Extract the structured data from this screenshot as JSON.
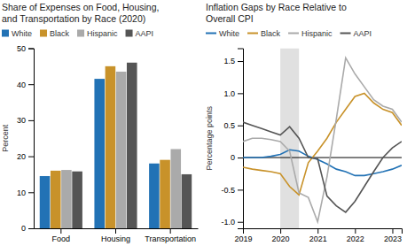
{
  "chart_data": [
    {
      "type": "bar",
      "title": "Share of Expenses on Food, Housing,\nand Transportation by Race (2020)",
      "y_label": "Percent",
      "categories": [
        "Food",
        "Housing",
        "Transportation"
      ],
      "series": [
        {
          "name": "White",
          "color": "#2272B5",
          "values": [
            14.5,
            41.5,
            18.0
          ]
        },
        {
          "name": "Black",
          "color": "#C8922A",
          "values": [
            16.0,
            45.0,
            19.0
          ]
        },
        {
          "name": "Hispanic",
          "color": "#AAAAAA",
          "values": [
            16.2,
            43.5,
            22.0
          ]
        },
        {
          "name": "AAPI",
          "color": "#555555",
          "values": [
            15.8,
            46.0,
            15.0
          ]
        }
      ],
      "ylim": [
        0,
        50
      ],
      "yticks": [
        0,
        10,
        20,
        30,
        40,
        50
      ],
      "legend": "top"
    },
    {
      "type": "line",
      "title": "Inflation Gaps by Race Relative to\nOverall CPI",
      "y_label": "Percentage points",
      "x": [
        2019.0,
        2019.25,
        2019.5,
        2019.75,
        2020.0,
        2020.25,
        2020.5,
        2020.75,
        2021.0,
        2021.25,
        2021.5,
        2021.75,
        2022.0,
        2022.25,
        2022.5,
        2022.75,
        2023.0,
        2023.25
      ],
      "series": [
        {
          "name": "White",
          "color": "#2272B5",
          "values": [
            0.0,
            0.0,
            0.0,
            0.02,
            0.05,
            0.12,
            0.1,
            0.02,
            -0.03,
            -0.1,
            -0.18,
            -0.22,
            -0.28,
            -0.28,
            -0.25,
            -0.22,
            -0.18,
            -0.12
          ]
        },
        {
          "name": "Black",
          "color": "#C8922A",
          "values": [
            -0.15,
            -0.18,
            -0.2,
            -0.22,
            -0.25,
            -0.45,
            -0.58,
            -0.08,
            0.1,
            0.3,
            0.55,
            0.75,
            0.95,
            1.0,
            0.85,
            0.75,
            0.7,
            0.5
          ]
        },
        {
          "name": "Hispanic",
          "color": "#AAAAAA",
          "values": [
            0.25,
            0.3,
            0.3,
            0.28,
            0.25,
            0.1,
            -0.55,
            -0.62,
            -1.0,
            -0.3,
            0.6,
            1.55,
            1.3,
            1.1,
            0.9,
            0.8,
            0.75,
            0.55
          ]
        },
        {
          "name": "AAPI",
          "color": "#555555",
          "values": [
            0.55,
            0.5,
            0.45,
            0.4,
            0.35,
            0.48,
            0.3,
            0.0,
            -0.02,
            -0.6,
            -0.75,
            -0.85,
            -0.68,
            -0.45,
            -0.22,
            0.0,
            0.15,
            0.25
          ]
        }
      ],
      "shade": [
        2020.0,
        2020.5
      ],
      "reference_line": 0,
      "xlim": [
        2019.0,
        2023.25
      ],
      "xticks": [
        2019,
        2020,
        2021,
        2022,
        2023
      ],
      "ylim": [
        -1.1,
        1.7
      ],
      "yticks": [
        {
          "value": -1.0,
          "label": "-1.0"
        },
        -0.5,
        0,
        0.5,
        {
          "value": 1.0,
          "label": "1.0"
        },
        1.5
      ],
      "legend": "top"
    }
  ]
}
